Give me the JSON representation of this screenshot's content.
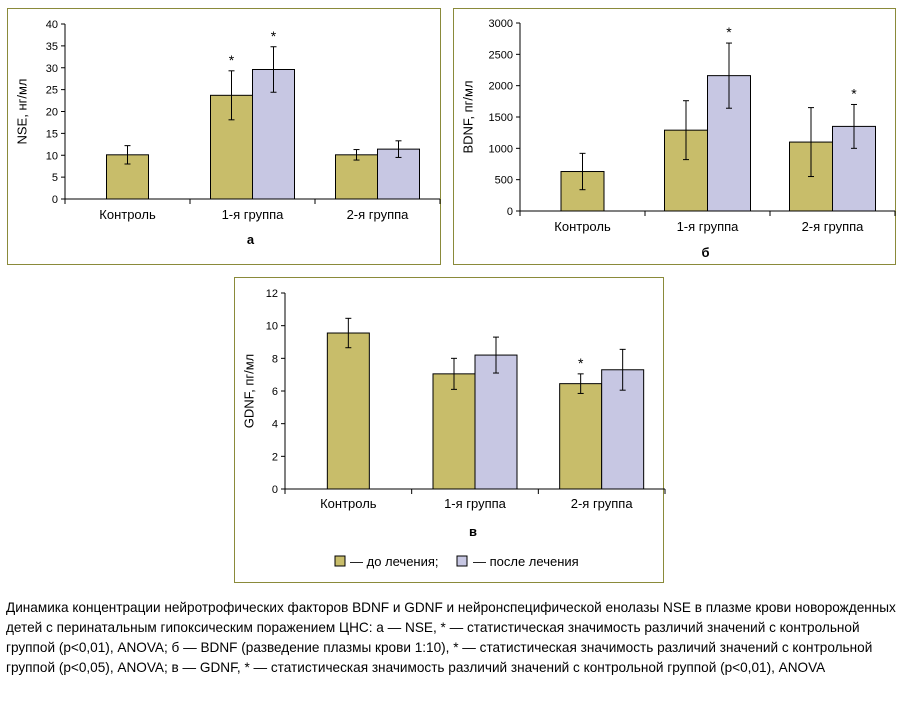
{
  "colors": {
    "before": "#c8bd6a",
    "after": "#c7c7e3",
    "frame": "#8a8a3a"
  },
  "legend": {
    "before_label": "— до лечения;",
    "after_label": "— после лечения"
  },
  "caption": {
    "text": "Динамика концентрации нейротрофических факторов BDNF и GDNF и нейронспецифической енолазы NSE в плазме крови новорожденных детей с перинатальным гипоксическим поражением ЦНС: а — NSE, * — статистическая значимость различий значений с контрольной группой (p<0,01), ANOVA; б — BDNF (разведение плазмы крови 1:10), * — статистическая значимость различий значений с контрольной группой (p<0,05), ANOVA; в — GDNF, * — статистическая значимость различий значений с контрольной группой (p<0,01), ANOVA"
  },
  "chart_data": [
    {
      "type": "bar",
      "panel_label": "а",
      "ylabel": "NSE, нг/мл",
      "ylim": [
        0,
        40
      ],
      "yticks": [
        0,
        5,
        10,
        15,
        20,
        25,
        30,
        35,
        40
      ],
      "categories": [
        "Контроль",
        "1-я группа",
        "2-я группа"
      ],
      "series": [
        {
          "key": "before",
          "values": [
            10.1,
            23.7,
            10.1
          ],
          "errors": [
            2.1,
            5.6,
            1.2
          ],
          "significant": [
            false,
            true,
            false
          ]
        },
        {
          "key": "after",
          "values": [
            null,
            29.6,
            11.4
          ],
          "errors": [
            null,
            5.2,
            1.9
          ],
          "significant": [
            false,
            true,
            false
          ]
        }
      ],
      "marker": "*"
    },
    {
      "type": "bar",
      "panel_label": "б",
      "ylabel": "BDNF, пг/мл",
      "ylim": [
        0,
        3000
      ],
      "yticks": [
        0,
        500,
        1000,
        1500,
        2000,
        2500,
        3000
      ],
      "categories": [
        "Контроль",
        "1-я группа",
        "2-я группа"
      ],
      "series": [
        {
          "key": "before",
          "values": [
            630,
            1290,
            1100
          ],
          "errors": [
            290,
            470,
            550
          ],
          "significant": [
            false,
            false,
            false
          ]
        },
        {
          "key": "after",
          "values": [
            null,
            2160,
            1350
          ],
          "errors": [
            null,
            520,
            350
          ],
          "significant": [
            false,
            true,
            true
          ]
        }
      ],
      "marker": "*"
    },
    {
      "type": "bar",
      "panel_label": "в",
      "ylabel": "GDNF, пг/мл",
      "ylim": [
        0,
        12
      ],
      "yticks": [
        0,
        2,
        4,
        6,
        8,
        10,
        12
      ],
      "categories": [
        "Контроль",
        "1-я группа",
        "2-я группа"
      ],
      "series": [
        {
          "key": "before",
          "values": [
            9.55,
            7.05,
            6.45
          ],
          "errors": [
            0.9,
            0.95,
            0.6
          ],
          "significant": [
            false,
            false,
            true
          ]
        },
        {
          "key": "after",
          "values": [
            null,
            8.2,
            7.3
          ],
          "errors": [
            null,
            1.1,
            1.25
          ],
          "significant": [
            false,
            false,
            false
          ]
        }
      ],
      "marker": "*"
    }
  ]
}
